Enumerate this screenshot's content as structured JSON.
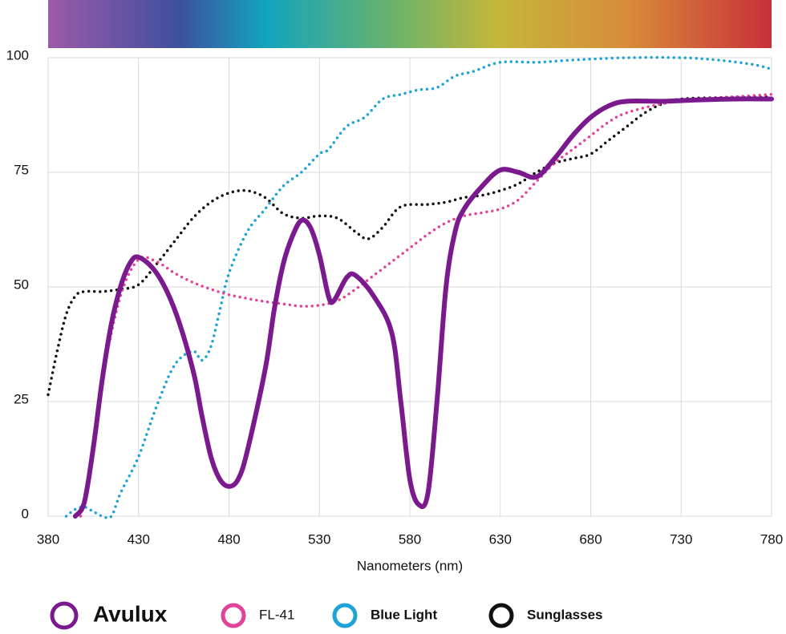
{
  "chart_data": {
    "type": "line",
    "x_label": "Nanometers (nm)",
    "xlim": [
      380,
      780
    ],
    "xticks": [
      380,
      430,
      480,
      530,
      580,
      630,
      680,
      730,
      780
    ],
    "ylim": [
      0,
      100
    ],
    "yticks": [
      0,
      25,
      50,
      75,
      100
    ],
    "grid": true,
    "series": [
      {
        "name": "Avulux",
        "color": "#7b1a8f",
        "style": "solid",
        "x": [
          395,
          400,
          405,
          410,
          415,
          420,
          425,
          430,
          440,
          450,
          460,
          465,
          470,
          475,
          480,
          485,
          490,
          500,
          505,
          510,
          515,
          520,
          525,
          530,
          535,
          538,
          545,
          550,
          560,
          570,
          575,
          580,
          585,
          590,
          595,
          600,
          605,
          610,
          620,
          630,
          640,
          650,
          660,
          670,
          680,
          690,
          700,
          720,
          740,
          760,
          780
        ],
        "values": [
          0,
          3,
          15,
          30,
          42,
          50,
          55,
          56.5,
          53,
          45,
          32,
          22,
          13,
          8,
          6.5,
          8,
          14,
          32,
          45,
          55,
          61,
          64.5,
          63,
          57,
          48,
          47,
          52,
          52.5,
          48,
          40,
          25,
          8,
          2.5,
          5,
          25,
          50,
          62,
          67,
          72,
          75.5,
          75,
          74,
          78,
          83,
          87,
          89.5,
          90.5,
          90.5,
          90.8,
          91,
          91
        ]
      },
      {
        "name": "FL-41",
        "color": "#e0449a",
        "style": "dotted",
        "x": [
          398,
          405,
          410,
          420,
          430,
          440,
          450,
          460,
          470,
          480,
          490,
          500,
          510,
          520,
          530,
          540,
          550,
          560,
          570,
          580,
          590,
          600,
          610,
          620,
          630,
          640,
          650,
          660,
          670,
          680,
          690,
          700,
          720,
          740,
          760,
          780
        ],
        "values": [
          0,
          15,
          30,
          48,
          56,
          55.5,
          53,
          51,
          49.5,
          48.3,
          47.5,
          46.8,
          46.3,
          45.8,
          46,
          47,
          49.5,
          52.5,
          55.5,
          58.5,
          61.5,
          64,
          65.5,
          66.2,
          67,
          69,
          73,
          77,
          80,
          83,
          86,
          88,
          90,
          91,
          91.5,
          92
        ]
      },
      {
        "name": "Blue Light",
        "color": "#1fa3d4",
        "style": "dotted",
        "x": [
          390,
          395,
          400,
          405,
          410,
          415,
          420,
          430,
          440,
          450,
          460,
          465,
          470,
          475,
          480,
          490,
          500,
          510,
          520,
          530,
          535,
          545,
          555,
          565,
          575,
          585,
          595,
          605,
          615,
          630,
          650,
          670,
          700,
          730,
          750,
          770,
          780
        ],
        "values": [
          0,
          1.5,
          2,
          1,
          0,
          0,
          5,
          13,
          24,
          33,
          36,
          34,
          37,
          45,
          53,
          62,
          67,
          72,
          75,
          79,
          80,
          85,
          87,
          91,
          92,
          93,
          93.5,
          96,
          97,
          99,
          99,
          99.5,
          100,
          100,
          99.5,
          98.5,
          97.5
        ]
      },
      {
        "name": "Sunglasses",
        "color": "#111111",
        "style": "dotted",
        "x": [
          380,
          385,
          390,
          395,
          400,
          410,
          420,
          430,
          440,
          450,
          460,
          470,
          480,
          490,
          500,
          510,
          520,
          530,
          540,
          550,
          557,
          565,
          575,
          590,
          600,
          610,
          620,
          630,
          640,
          650,
          660,
          670,
          680,
          690,
          700,
          710,
          720,
          730,
          750,
          780
        ],
        "values": [
          26.5,
          36,
          44,
          48,
          49,
          49,
          49.5,
          50.5,
          55,
          60,
          65,
          68.5,
          70.5,
          71,
          69.5,
          66,
          65,
          65.5,
          65,
          62,
          60.5,
          63,
          67.5,
          68,
          68.5,
          69.5,
          70,
          71,
          72.5,
          75,
          77,
          78,
          79,
          82,
          85,
          88,
          90,
          91,
          91.3,
          91.5
        ]
      }
    ]
  }
}
